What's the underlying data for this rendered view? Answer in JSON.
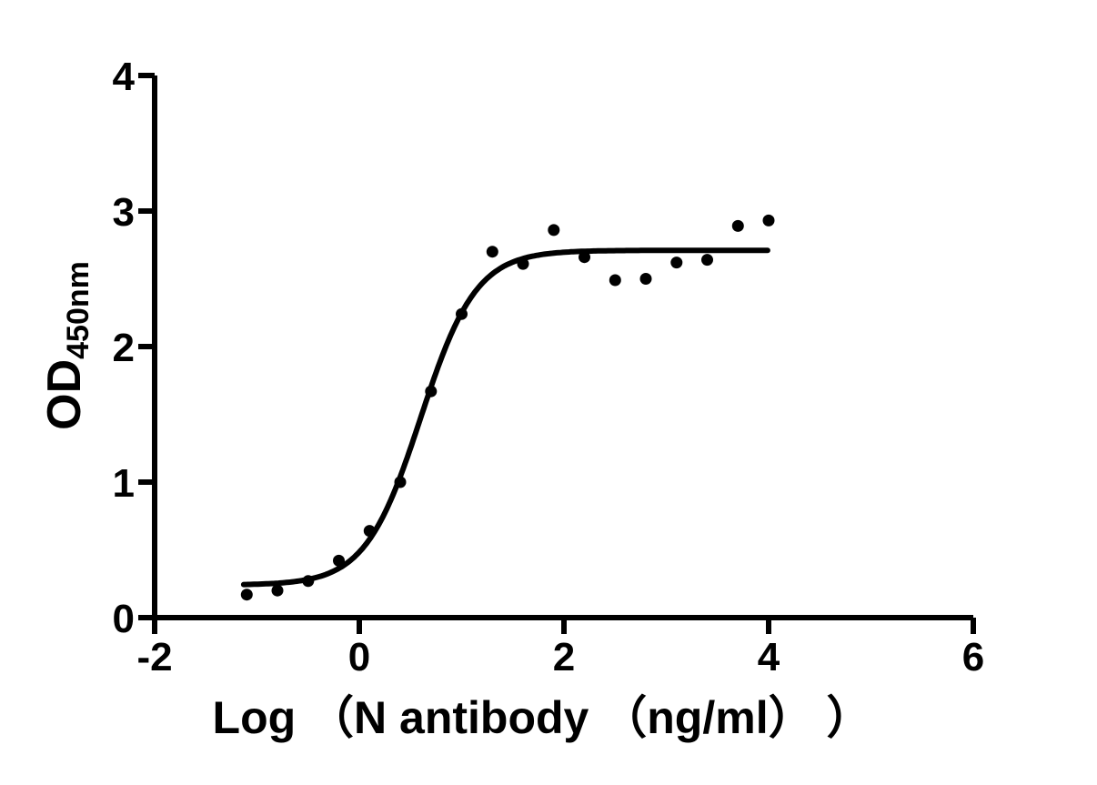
{
  "page": {
    "background": "#ffffff"
  },
  "chart_data": {
    "type": "scatter",
    "subtype": "sigmoidal-dose-response-elisa",
    "title": "",
    "xlabel": "Log （N antibody （ng/ml） ）",
    "ylabel": "OD",
    "ylabel_subscript": "450nm",
    "xlim": [
      -2,
      6
    ],
    "ylim": [
      0,
      4
    ],
    "xticks": [
      {
        "value": -2,
        "label": "-2"
      },
      {
        "value": 0,
        "label": "0"
      },
      {
        "value": 2,
        "label": "2"
      },
      {
        "value": 4,
        "label": "4"
      },
      {
        "value": 6,
        "label": "6"
      }
    ],
    "yticks": [
      {
        "value": 0,
        "label": "0"
      },
      {
        "value": 1,
        "label": "1"
      },
      {
        "value": 2,
        "label": "2"
      },
      {
        "value": 3,
        "label": "3"
      },
      {
        "value": 4,
        "label": "4"
      }
    ],
    "grid": false,
    "legend": "none",
    "points": [
      {
        "x": -1.1,
        "y": 0.17
      },
      {
        "x": -0.8,
        "y": 0.2
      },
      {
        "x": -0.5,
        "y": 0.27
      },
      {
        "x": -0.2,
        "y": 0.42
      },
      {
        "x": 0.1,
        "y": 0.64
      },
      {
        "x": 0.4,
        "y": 1.0
      },
      {
        "x": 0.7,
        "y": 1.67
      },
      {
        "x": 1.0,
        "y": 2.24
      },
      {
        "x": 1.3,
        "y": 2.7
      },
      {
        "x": 1.6,
        "y": 2.61
      },
      {
        "x": 1.9,
        "y": 2.86
      },
      {
        "x": 2.2,
        "y": 2.66
      },
      {
        "x": 2.5,
        "y": 2.49
      },
      {
        "x": 2.8,
        "y": 2.5
      },
      {
        "x": 3.1,
        "y": 2.62
      },
      {
        "x": 3.4,
        "y": 2.64
      },
      {
        "x": 3.7,
        "y": 2.89
      },
      {
        "x": 4.0,
        "y": 2.93
      }
    ],
    "fit_curve": {
      "model": "4PL",
      "bottom": 0.24,
      "top": 2.71,
      "log_ec50": 0.6,
      "hill_slope": 1.6,
      "x_start": -1.13,
      "x_end": 4.0
    },
    "colors": {
      "points": "#000000",
      "curve": "#000000",
      "axis": "#000000",
      "text": "#000000"
    }
  }
}
